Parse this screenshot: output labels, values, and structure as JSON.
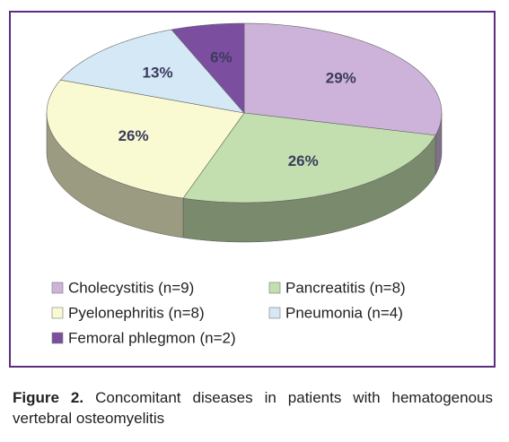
{
  "chart_data": {
    "type": "pie3d",
    "categories": [
      "Cholecystitis (n=9)",
      "Pancreatitis (n=8)",
      "Pyelonephritis (n=8)",
      "Pneumonia (n=4)",
      "Femoral phlegmon (n=2)"
    ],
    "values": [
      29,
      26,
      26,
      13,
      6
    ],
    "value_labels": [
      "29%",
      "26%",
      "26%",
      "13%",
      "6%"
    ],
    "colors": [
      "#cdb3d9",
      "#c3dfb0",
      "#fafad2",
      "#d4e8f6",
      "#7b4ea0"
    ]
  },
  "caption": {
    "label": "Figure 2.",
    "text": "Concomitant diseases in patients with hematogenous vertebral osteomyelitis"
  }
}
